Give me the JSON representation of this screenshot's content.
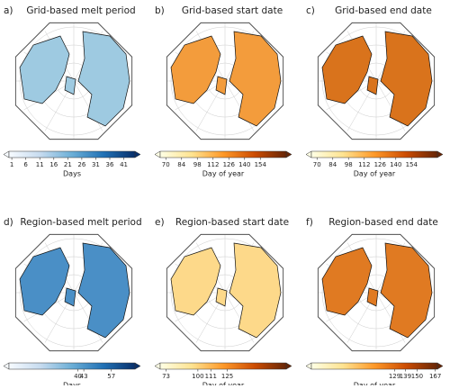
{
  "panels": [
    {
      "label": "a)",
      "title": "Grid-based melt period",
      "land_color": "#9ecae1",
      "colorbar": {
        "label": "Days",
        "lim": [
          0,
          45
        ],
        "ticks": [
          1,
          6,
          11,
          16,
          21,
          26,
          31,
          36,
          41
        ],
        "colors": [
          "#f7fbff",
          "#c6dbef",
          "#6baed6",
          "#2171b5",
          "#08306b"
        ]
      }
    },
    {
      "label": "b)",
      "title": "Grid-based start date",
      "land_color": "#f39c3c",
      "colorbar": {
        "label": "Day of year",
        "lim": [
          65,
          177
        ],
        "ticks": [
          70,
          84,
          98,
          112,
          126,
          140,
          154
        ],
        "colors": [
          "#ffffe5",
          "#fee391",
          "#fe9929",
          "#cc4c02",
          "#662506"
        ]
      }
    },
    {
      "label": "c)",
      "title": "Grid-based end date",
      "land_color": "#d9731c",
      "colorbar": {
        "label": "Day of year",
        "lim": [
          65,
          177
        ],
        "ticks": [
          70,
          84,
          98,
          112,
          126,
          140,
          154
        ],
        "colors": [
          "#ffffe5",
          "#fee391",
          "#fe9929",
          "#cc4c02",
          "#662506"
        ]
      }
    },
    {
      "label": "d)",
      "title": "Region-based melt period",
      "land_color": "#4a8fc6",
      "colorbar": {
        "label": "Days",
        "lim": [
          5,
          69
        ],
        "ticks": [
          40,
          43,
          57
        ],
        "colors": [
          "#f7fbff",
          "#c6dbef",
          "#6baed6",
          "#2171b5",
          "#08306b"
        ]
      }
    },
    {
      "label": "e)",
      "title": "Region-based start date",
      "land_color": "#fdd98a",
      "colorbar": {
        "label": "Day of year",
        "lim": [
          68,
          175
        ],
        "ticks": [
          73,
          100,
          111,
          125
        ],
        "colors": [
          "#ffffe5",
          "#fee391",
          "#fe9929",
          "#cc4c02",
          "#662506"
        ]
      }
    },
    {
      "label": "f)",
      "title": "Region-based end date",
      "land_color": "#e07a22",
      "colorbar": {
        "label": "Day of year",
        "lim": [
          51,
          169
        ],
        "ticks": [
          129,
          139,
          150,
          167
        ],
        "colors": [
          "#ffffe5",
          "#fee391",
          "#fe9929",
          "#cc4c02",
          "#662506"
        ]
      }
    }
  ]
}
